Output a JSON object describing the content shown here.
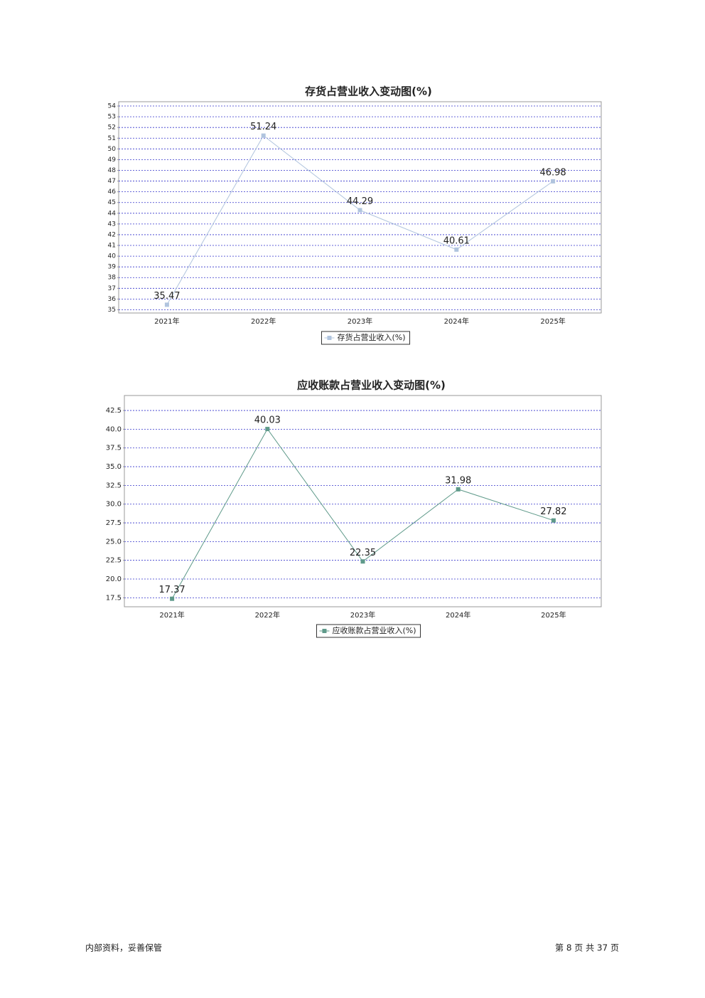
{
  "chart_data": [
    {
      "type": "line",
      "title": "存货占营业收入变动图(%)",
      "categories": [
        "2021年",
        "2022年",
        "2023年",
        "2024年",
        "2025年"
      ],
      "series": [
        {
          "name": "存货占营业收入(%)",
          "color": "#b0c4de",
          "values": [
            35.47,
            51.24,
            44.29,
            40.61,
            46.98
          ]
        }
      ],
      "ylim": [
        34.7,
        54.4
      ],
      "yticks": [
        35,
        36,
        37,
        38,
        39,
        40,
        41,
        42,
        43,
        44,
        45,
        46,
        47,
        48,
        49,
        50,
        51,
        52,
        53,
        54
      ],
      "grid": true,
      "legend": "bottom"
    },
    {
      "type": "line",
      "title": "应收账款占营业收入变动图(%)",
      "categories": [
        "2021年",
        "2022年",
        "2023年",
        "2024年",
        "2025年"
      ],
      "series": [
        {
          "name": "应收账款占营业收入(%)",
          "color": "#5f9a8a",
          "values": [
            17.37,
            40.03,
            22.35,
            31.98,
            27.82
          ]
        }
      ],
      "ylim": [
        16.3,
        44.5
      ],
      "yticks": [
        17.5,
        {
          "value": 20,
          "label": "20.0"
        },
        22.5,
        {
          "value": 25,
          "label": "25.0"
        },
        27.5,
        {
          "value": 30,
          "label": "30.0"
        },
        32.5,
        {
          "value": 35,
          "label": "35.0"
        },
        37.5,
        {
          "value": 40,
          "label": "40.0"
        },
        42.5
      ],
      "grid": true,
      "legend": "bottom"
    }
  ],
  "footer": {
    "left": "内部资料，妥善保管",
    "right": "第 8 页 共 37 页"
  }
}
